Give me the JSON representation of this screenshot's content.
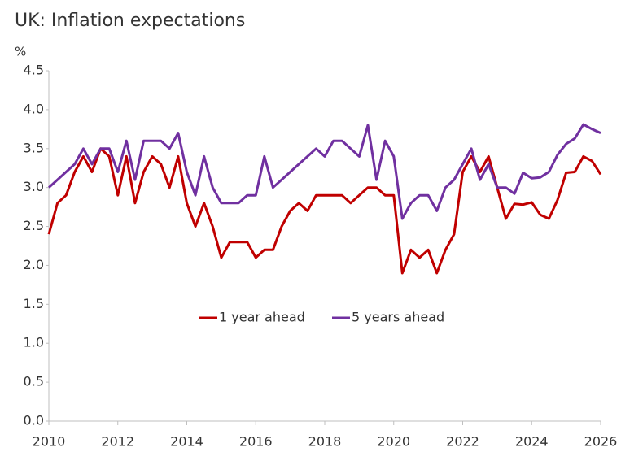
{
  "chart_data": {
    "type": "line",
    "title": "UK: Inflation expectations",
    "y_unit": "%",
    "x": [
      2010,
      2010.25,
      2010.5,
      2010.75,
      2011,
      2011.25,
      2011.5,
      2011.75,
      2012,
      2012.25,
      2012.5,
      2012.75,
      2013,
      2013.25,
      2013.5,
      2013.75,
      2014,
      2014.25,
      2014.5,
      2014.75,
      2015,
      2015.25,
      2015.5,
      2015.75,
      2016,
      2016.25,
      2016.5,
      2016.75,
      2017,
      2017.25,
      2017.5,
      2017.75,
      2018,
      2018.25,
      2018.5,
      2018.75,
      2019,
      2019.25,
      2019.5,
      2019.75,
      2020,
      2020.25,
      2020.5,
      2020.75,
      2021,
      2021.25,
      2021.5,
      2021.75,
      2022,
      2022.25,
      2022.5,
      2022.75,
      2023,
      2023.25,
      2023.5,
      2023.75,
      2024,
      2024.25,
      2024.5,
      2024.75,
      2025,
      2025.25,
      2025.5,
      2025.75,
      2026
    ],
    "series": [
      {
        "name": "1 year ahead",
        "color": "#c00000",
        "values": [
          2.4,
          2.8,
          2.9,
          3.2,
          3.4,
          3.2,
          3.5,
          3.4,
          2.9,
          3.4,
          2.8,
          3.2,
          3.4,
          3.3,
          3.0,
          3.4,
          2.8,
          2.5,
          2.8,
          2.5,
          2.1,
          2.3,
          2.3,
          2.3,
          2.1,
          2.2,
          2.2,
          2.5,
          2.7,
          2.8,
          2.7,
          2.9,
          2.9,
          2.9,
          2.9,
          2.8,
          2.9,
          3.0,
          3.0,
          2.9,
          2.9,
          1.9,
          2.2,
          2.1,
          2.2,
          1.9,
          2.2,
          2.4,
          3.2,
          3.4,
          3.2,
          3.4,
          3.0,
          2.6,
          2.79,
          2.78,
          2.81,
          2.65,
          2.6,
          2.84,
          3.19,
          3.2,
          3.4,
          3.34,
          3.17
        ]
      },
      {
        "name": "5 years ahead",
        "color": "#7030a0",
        "values": [
          3.0,
          3.1,
          3.2,
          3.3,
          3.5,
          3.3,
          3.5,
          3.5,
          3.2,
          3.6,
          3.1,
          3.6,
          3.6,
          3.6,
          3.5,
          3.7,
          3.2,
          2.9,
          3.4,
          3.0,
          2.8,
          2.8,
          2.8,
          2.9,
          2.9,
          3.4,
          3.0,
          3.1,
          3.2,
          3.3,
          3.4,
          3.5,
          3.4,
          3.6,
          3.6,
          3.5,
          3.4,
          3.8,
          3.1,
          3.6,
          3.4,
          2.6,
          2.8,
          2.9,
          2.9,
          2.7,
          3.0,
          3.1,
          3.3,
          3.5,
          3.1,
          3.3,
          3.0,
          3.0,
          2.92,
          3.19,
          3.12,
          3.13,
          3.2,
          3.42,
          3.56,
          3.63,
          3.81,
          3.75,
          3.7
        ]
      }
    ],
    "xlim": [
      2010,
      2026
    ],
    "xticks": [
      2010,
      2012,
      2014,
      2016,
      2018,
      2020,
      2022,
      2024,
      2026
    ],
    "ylim": [
      0,
      4.5
    ],
    "yticks": [
      {
        "value": 0,
        "label": "0.0"
      },
      {
        "value": 0.5,
        "label": "0.5"
      },
      {
        "value": 1,
        "label": "1.0"
      },
      {
        "value": 1.5,
        "label": "1.5"
      },
      {
        "value": 2,
        "label": "2.0"
      },
      {
        "value": 2.5,
        "label": "2.5"
      },
      {
        "value": 3,
        "label": "3.0"
      },
      {
        "value": 3.5,
        "label": "3.5"
      },
      {
        "value": 4,
        "label": "4.0"
      },
      {
        "value": 4.5,
        "label": "4.5"
      }
    ],
    "grid": false,
    "legend": "center"
  }
}
